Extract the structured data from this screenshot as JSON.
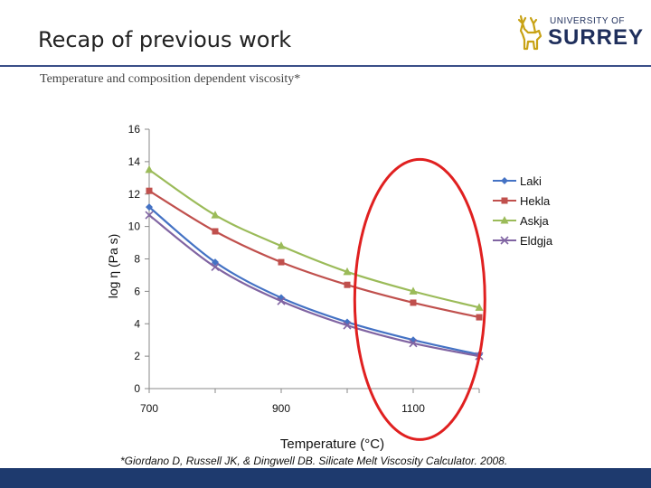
{
  "slide": {
    "title": "Recap of previous work",
    "subtitle": "Temperature and composition dependent viscosity*",
    "footnote": "*Giordano D, Russell JK, & Dingwell DB. Silicate Melt Viscosity Calculator. 2008."
  },
  "logo": {
    "line1": "UNIVERSITY OF",
    "line2": "SURREY",
    "color": "#1f2f5c",
    "stag_color": "#c8a215"
  },
  "colors": {
    "bottom_bar": "#1e3a6e",
    "highlight_ellipse": "#e02020"
  },
  "chart_data": {
    "type": "line",
    "title": "",
    "xlabel": "Temperature (°C)",
    "ylabel": "log η (Pa s)",
    "xlim": [
      700,
      1200
    ],
    "ylim": [
      0,
      16
    ],
    "x_ticks": [
      "700",
      "900",
      "1100"
    ],
    "y_ticks": [
      "0",
      "2",
      "4",
      "6",
      "8",
      "10",
      "12",
      "14",
      "16"
    ],
    "x": [
      700,
      800,
      900,
      1000,
      1100,
      1200
    ],
    "series": [
      {
        "name": "Laki",
        "values": [
          11.2,
          7.8,
          5.6,
          4.1,
          3.0,
          2.1
        ],
        "color": "#4472c4",
        "marker": "diamond"
      },
      {
        "name": "Hekla",
        "values": [
          12.2,
          9.7,
          7.8,
          6.4,
          5.3,
          4.4
        ],
        "color": "#c0504d",
        "marker": "square"
      },
      {
        "name": "Askja",
        "values": [
          13.5,
          10.7,
          8.8,
          7.2,
          6.0,
          5.0
        ],
        "color": "#9bbb59",
        "marker": "triangle"
      },
      {
        "name": "Eldgja",
        "values": [
          10.7,
          7.5,
          5.4,
          3.9,
          2.8,
          2.0
        ],
        "color": "#8064a2",
        "marker": "x"
      }
    ],
    "legend": "right",
    "highlight": "ellipse around 1100–1200 °C region"
  }
}
